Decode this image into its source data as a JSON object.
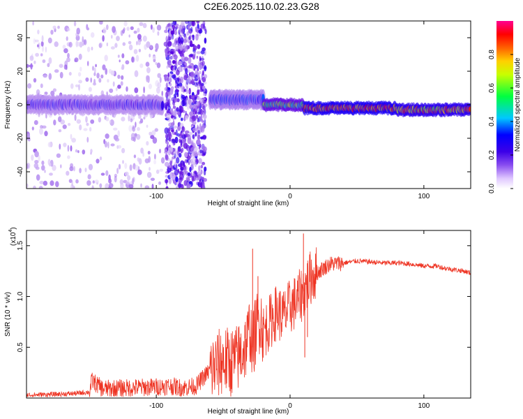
{
  "figure": {
    "title": "C2E6.2025.110.02.23.G28"
  },
  "chart_data": [
    {
      "type": "heatmap",
      "xlabel": "Height of straight line (km)",
      "ylabel": "Frequency (Hz)",
      "xlim": [
        -197,
        135
      ],
      "ylim": [
        -50,
        50
      ],
      "xticks": [
        -100,
        0,
        100
      ],
      "xtick_labels": [
        "-100",
        "0",
        "100"
      ],
      "yticks": [
        -40,
        -20,
        0,
        20,
        40
      ],
      "ytick_labels": [
        "-40",
        "-20",
        "0",
        "20",
        "40"
      ],
      "grid": false,
      "colorbar": {
        "label": "Normalized spectral amplitude",
        "range": [
          0,
          1
        ],
        "ticks": [
          0.0,
          0.2,
          0.4,
          0.6,
          0.8
        ],
        "tick_labels": [
          "0.0",
          "0.2",
          "0.4",
          "0.6",
          "0.8"
        ],
        "colormap": [
          "#ffffff",
          "#b58cf0",
          "#5a00e0",
          "#0000ff",
          "#00d8ff",
          "#00ff40",
          "#ffff00",
          "#ff8000",
          "#ff0000",
          "#ff0090"
        ]
      },
      "segments": [
        {
          "x": [
            -197,
            -95
          ],
          "description_level": "noisy",
          "band_center": 0,
          "band_halfwidth": 4,
          "band_amplitude": 0.3,
          "background_amplitude": 0.08
        },
        {
          "x": [
            -93,
            -63
          ],
          "description_level": "noisy",
          "band_center": 0,
          "band_halfwidth": 0,
          "band_amplitude": 0.0,
          "background_amplitude": 0.15
        },
        {
          "x": [
            -60,
            -20
          ],
          "band_center": 3,
          "band_halfwidth": 4,
          "band_amplitude": 0.35
        },
        {
          "x": [
            -20,
            10
          ],
          "band_center": 0,
          "band_halfwidth": 2,
          "band_amplitude": 0.6
        },
        {
          "x": [
            10,
            80
          ],
          "band_center": -2,
          "band_halfwidth": 2,
          "band_amplitude": 0.85
        },
        {
          "x": [
            80,
            135
          ],
          "band_center": -3,
          "band_halfwidth": 2,
          "band_amplitude": 0.8
        }
      ]
    },
    {
      "type": "line",
      "xlabel": "Height of straight line (km)",
      "ylabel": "SNR (10 * v/v)",
      "y_multiplier_label": "(x10",
      "y_multiplier_exp": "4",
      "xlim": [
        -197,
        135
      ],
      "ylim": [
        0,
        16500
      ],
      "xticks": [
        -100,
        0,
        100
      ],
      "xtick_labels": [
        "-100",
        "0",
        "100"
      ],
      "yticks": [
        5000,
        10000,
        15000
      ],
      "ytick_labels": [
        "0.5",
        "1.0",
        "1.5"
      ],
      "color": "#ee3322",
      "grid": false,
      "series": [
        {
          "x": [
            -197,
            -180,
            -160,
            -150,
            -148,
            -140,
            -120,
            -100,
            -90,
            -80,
            -70,
            -65,
            -60,
            -55,
            -50,
            -45,
            -40,
            -36,
            -32,
            -30,
            -28,
            -26,
            -24,
            -22,
            -20,
            -15,
            -10,
            -5,
            0,
            5,
            10,
            12,
            14,
            16,
            20,
            25,
            30,
            40,
            50,
            60,
            70,
            80,
            90,
            100,
            110,
            115,
            120,
            130,
            135
          ],
          "y": [
            300,
            350,
            450,
            600,
            1700,
            900,
            1000,
            1100,
            1200,
            1000,
            1200,
            2000,
            2700,
            3200,
            3700,
            3500,
            3800,
            4500,
            5500,
            7000,
            5000,
            6500,
            7500,
            8000,
            6500,
            7500,
            8500,
            8000,
            9000,
            9500,
            10500,
            11000,
            11500,
            12000,
            12300,
            12800,
            13200,
            13300,
            13500,
            13400,
            13300,
            13300,
            13200,
            13000,
            13000,
            12800,
            12700,
            12500,
            12300
          ]
        }
      ],
      "spikes": [
        {
          "x": -28,
          "y": 14700
        },
        {
          "x": -24,
          "y": 12000
        },
        {
          "x": 10,
          "y": 16200
        },
        {
          "x": 11,
          "y": 4000
        },
        {
          "x": 13,
          "y": 6000
        }
      ]
    }
  ]
}
